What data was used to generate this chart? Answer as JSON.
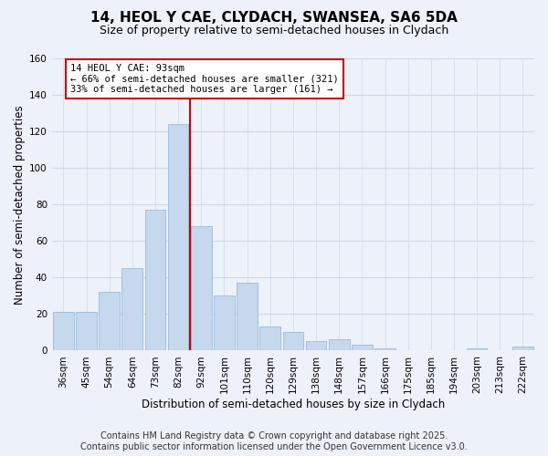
{
  "title": "14, HEOL Y CAE, CLYDACH, SWANSEA, SA6 5DA",
  "subtitle": "Size of property relative to semi-detached houses in Clydach",
  "xlabel": "Distribution of semi-detached houses by size in Clydach",
  "ylabel": "Number of semi-detached properties",
  "bar_color": "#c5d8ee",
  "bar_edge_color": "#9bbbd8",
  "background_color": "#edf1f9",
  "grid_color": "#d0d8e8",
  "bin_labels": [
    "36sqm",
    "45sqm",
    "54sqm",
    "64sqm",
    "73sqm",
    "82sqm",
    "92sqm",
    "101sqm",
    "110sqm",
    "120sqm",
    "129sqm",
    "138sqm",
    "148sqm",
    "157sqm",
    "166sqm",
    "175sqm",
    "185sqm",
    "194sqm",
    "203sqm",
    "213sqm",
    "222sqm"
  ],
  "bar_values": [
    21,
    21,
    32,
    45,
    77,
    124,
    68,
    30,
    37,
    13,
    10,
    5,
    6,
    3,
    1,
    0,
    0,
    0,
    1,
    0,
    2
  ],
  "vline_color": "#cc0000",
  "vline_position": 5.5,
  "annotation_title": "14 HEOL Y CAE: 93sqm",
  "annotation_line1": "← 66% of semi-detached houses are smaller (321)",
  "annotation_line2": "33% of semi-detached houses are larger (161) →",
  "annotation_box_color": "#ffffff",
  "annotation_box_edge": "#cc0000",
  "footer1": "Contains HM Land Registry data © Crown copyright and database right 2025.",
  "footer2": "Contains public sector information licensed under the Open Government Licence v3.0.",
  "ylim": [
    0,
    160
  ],
  "yticks": [
    0,
    20,
    40,
    60,
    80,
    100,
    120,
    140,
    160
  ],
  "title_fontsize": 11,
  "subtitle_fontsize": 9,
  "tick_fontsize": 7.5,
  "label_fontsize": 8.5,
  "footer_fontsize": 7
}
